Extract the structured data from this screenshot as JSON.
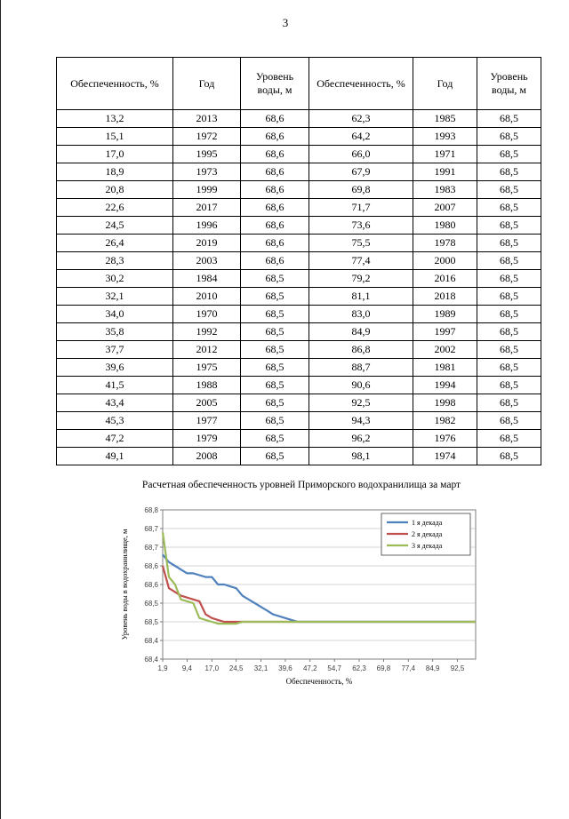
{
  "page": {
    "number": "3"
  },
  "table": {
    "headers": [
      "Обеспеченность, %",
      "Год",
      "Уровень воды, м",
      "Обеспеченность, %",
      "Год",
      "Уровень воды, м"
    ],
    "rows": [
      [
        "13,2",
        "2013",
        "68,6",
        "62,3",
        "1985",
        "68,5"
      ],
      [
        "15,1",
        "1972",
        "68,6",
        "64,2",
        "1993",
        "68,5"
      ],
      [
        "17,0",
        "1995",
        "68,6",
        "66,0",
        "1971",
        "68,5"
      ],
      [
        "18,9",
        "1973",
        "68,6",
        "67,9",
        "1991",
        "68,5"
      ],
      [
        "20,8",
        "1999",
        "68,6",
        "69,8",
        "1983",
        "68,5"
      ],
      [
        "22,6",
        "2017",
        "68,6",
        "71,7",
        "2007",
        "68,5"
      ],
      [
        "24,5",
        "1996",
        "68,6",
        "73,6",
        "1980",
        "68,5"
      ],
      [
        "26,4",
        "2019",
        "68,6",
        "75,5",
        "1978",
        "68,5"
      ],
      [
        "28,3",
        "2003",
        "68,6",
        "77,4",
        "2000",
        "68,5"
      ],
      [
        "30,2",
        "1984",
        "68,5",
        "79,2",
        "2016",
        "68,5"
      ],
      [
        "32,1",
        "2010",
        "68,5",
        "81,1",
        "2018",
        "68,5"
      ],
      [
        "34,0",
        "1970",
        "68,5",
        "83,0",
        "1989",
        "68,5"
      ],
      [
        "35,8",
        "1992",
        "68,5",
        "84,9",
        "1997",
        "68,5"
      ],
      [
        "37,7",
        "2012",
        "68,5",
        "86,8",
        "2002",
        "68,5"
      ],
      [
        "39,6",
        "1975",
        "68,5",
        "88,7",
        "1981",
        "68,5"
      ],
      [
        "41,5",
        "1988",
        "68,5",
        "90,6",
        "1994",
        "68,5"
      ],
      [
        "43,4",
        "2005",
        "68,5",
        "92,5",
        "1998",
        "68,5"
      ],
      [
        "45,3",
        "1977",
        "68,5",
        "94,3",
        "1982",
        "68,5"
      ],
      [
        "47,2",
        "1979",
        "68,5",
        "96,2",
        "1976",
        "68,5"
      ],
      [
        "49,1",
        "2008",
        "68,5",
        "98,1",
        "1974",
        "68,5"
      ]
    ]
  },
  "chart_data": {
    "type": "line",
    "title": "Расчетная обеспеченность уровней Приморского водохранилища за март",
    "xlabel": "Обеспеченность, %",
    "ylabel": "Уровень воды в водохранилище, м",
    "ylim": [
      68.4,
      68.8
    ],
    "xlim": [
      1.9,
      98.1
    ],
    "grid": true,
    "legend_position": "top-right",
    "y_tick_labels": [
      "68,8",
      "68,7",
      "68,7",
      "68,6",
      "68,6",
      "68,5",
      "68,5",
      "68,4",
      "68,4"
    ],
    "x_tick_values": [
      1.9,
      9.4,
      17.0,
      24.5,
      32.1,
      39.6,
      47.2,
      54.7,
      62.3,
      69.8,
      77.4,
      84.9,
      92.5
    ],
    "x_tick_labels": [
      "1,9",
      "9,4",
      "17,0",
      "24,5",
      "32,1",
      "39,6",
      "47,2",
      "54,7",
      "62,3",
      "69,8",
      "77,4",
      "84,9",
      "92,5"
    ],
    "series": [
      {
        "name": "1 я декада",
        "color": "#4F81BD",
        "points": [
          [
            1.9,
            68.68
          ],
          [
            3.8,
            68.66
          ],
          [
            5.7,
            68.65
          ],
          [
            7.5,
            68.64
          ],
          [
            9.4,
            68.63
          ],
          [
            11.3,
            68.63
          ],
          [
            13.2,
            68.625
          ],
          [
            15.1,
            68.62
          ],
          [
            17.0,
            68.62
          ],
          [
            18.9,
            68.6
          ],
          [
            20.8,
            68.6
          ],
          [
            22.6,
            68.595
          ],
          [
            24.5,
            68.59
          ],
          [
            26.4,
            68.57
          ],
          [
            28.3,
            68.56
          ],
          [
            30.2,
            68.55
          ],
          [
            32.1,
            68.54
          ],
          [
            34.0,
            68.53
          ],
          [
            35.8,
            68.52
          ],
          [
            37.7,
            68.515
          ],
          [
            39.6,
            68.51
          ],
          [
            41.5,
            68.505
          ],
          [
            43.4,
            68.5
          ],
          [
            98.1,
            68.5
          ]
        ]
      },
      {
        "name": "2 я декада",
        "color": "#C0504D",
        "points": [
          [
            1.9,
            68.65
          ],
          [
            3.8,
            68.59
          ],
          [
            5.7,
            68.58
          ],
          [
            7.5,
            68.57
          ],
          [
            9.4,
            68.565
          ],
          [
            11.3,
            68.56
          ],
          [
            13.2,
            68.555
          ],
          [
            15.1,
            68.52
          ],
          [
            17.0,
            68.51
          ],
          [
            18.9,
            68.505
          ],
          [
            20.8,
            68.5
          ],
          [
            98.1,
            68.5
          ]
        ]
      },
      {
        "name": "3 я декада",
        "color": "#9BBB59",
        "points": [
          [
            1.9,
            68.74
          ],
          [
            3.8,
            68.62
          ],
          [
            5.7,
            68.6
          ],
          [
            7.5,
            68.56
          ],
          [
            9.4,
            68.555
          ],
          [
            11.3,
            68.55
          ],
          [
            13.2,
            68.51
          ],
          [
            15.1,
            68.505
          ],
          [
            17.0,
            68.5
          ],
          [
            18.9,
            68.495
          ],
          [
            20.8,
            68.495
          ],
          [
            24.5,
            68.495
          ],
          [
            26.4,
            68.5
          ],
          [
            98.1,
            68.5
          ]
        ]
      }
    ],
    "colors": {
      "grid": "#C9C9C9",
      "plot_border": "#7F7F7F",
      "axis": "#595959"
    }
  }
}
